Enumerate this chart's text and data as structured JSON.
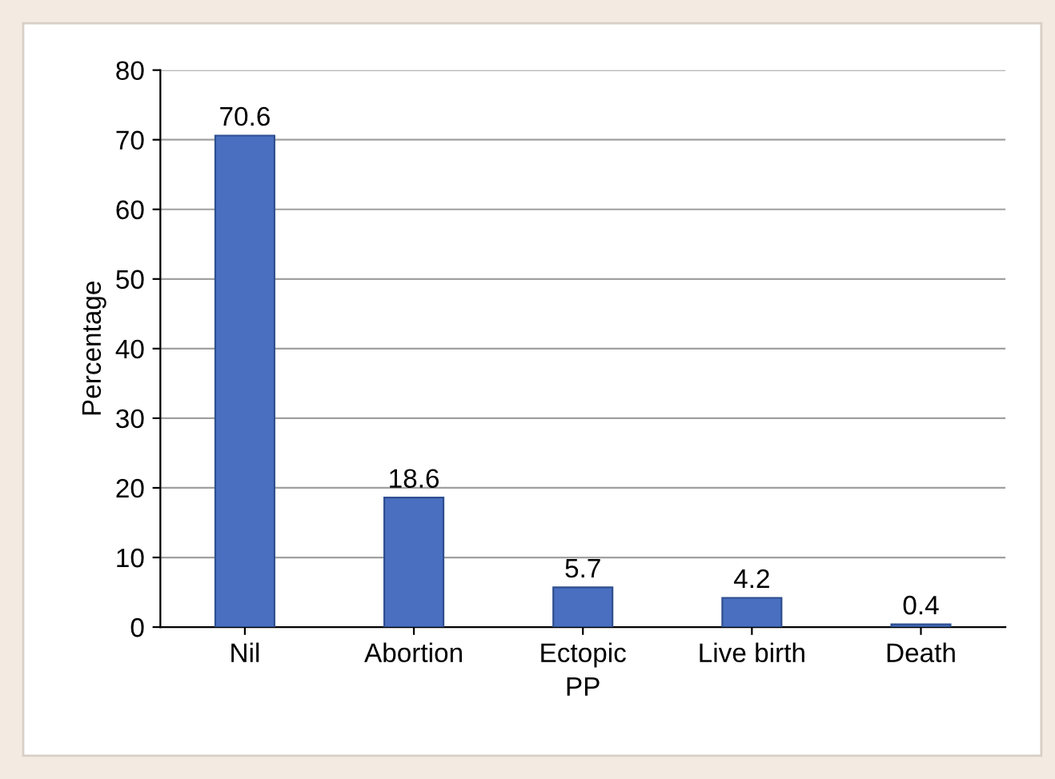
{
  "chart_data": {
    "type": "bar",
    "xlabel": "PP",
    "ylabel": "Percentage",
    "categories": [
      "Nil",
      "Abortion",
      "Ectopic",
      "Live birth",
      "Death"
    ],
    "values": [
      70.6,
      18.6,
      5.7,
      4.2,
      0.4
    ],
    "color": "#4a6fc0",
    "data_labels": true,
    "ylim": [
      0,
      80
    ],
    "yticks": [
      0,
      10,
      20,
      30,
      40,
      50,
      60,
      70,
      80
    ],
    "grid": "y"
  }
}
